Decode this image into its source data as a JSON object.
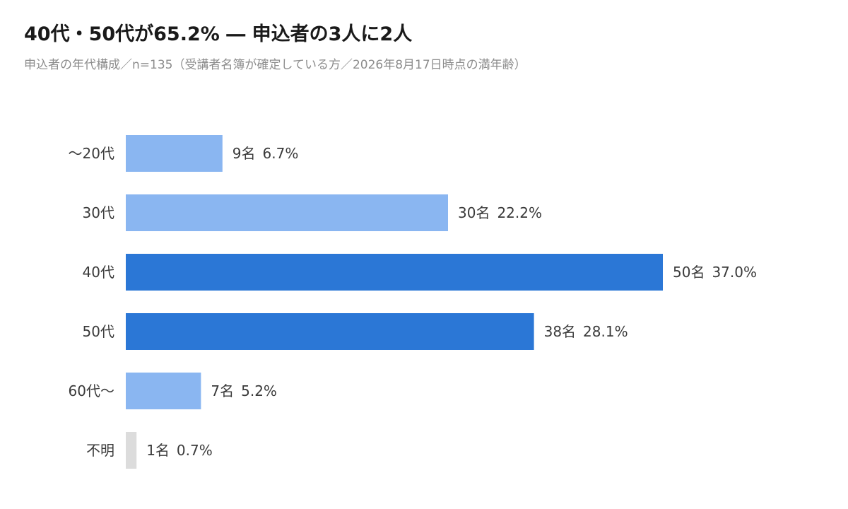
{
  "chart_data": {
    "type": "bar",
    "orientation": "horizontal",
    "title": "40代・50代が65.2% ― 申込者の3人に2人",
    "subtitle": "申込者の年代構成／n=135（受講者名簿が確定している方／2026年8月17日時点の満年齢）",
    "xlabel": "",
    "ylabel": "",
    "xlim": [
      0,
      50
    ],
    "grid": false,
    "unit": "名",
    "categories": [
      "〜20代",
      "30代",
      "40代",
      "50代",
      "60代〜",
      "不明"
    ],
    "values": [
      9,
      30,
      50,
      38,
      7,
      1
    ],
    "percents": [
      "6.7%",
      "22.2%",
      "37.0%",
      "28.1%",
      "5.2%",
      "0.7%"
    ],
    "highlight": [
      false,
      false,
      true,
      true,
      false,
      false
    ],
    "colors": {
      "normal": "#8ab6f1",
      "highlight": "#2b77d6",
      "unknown": "#dcdcdc"
    }
  }
}
